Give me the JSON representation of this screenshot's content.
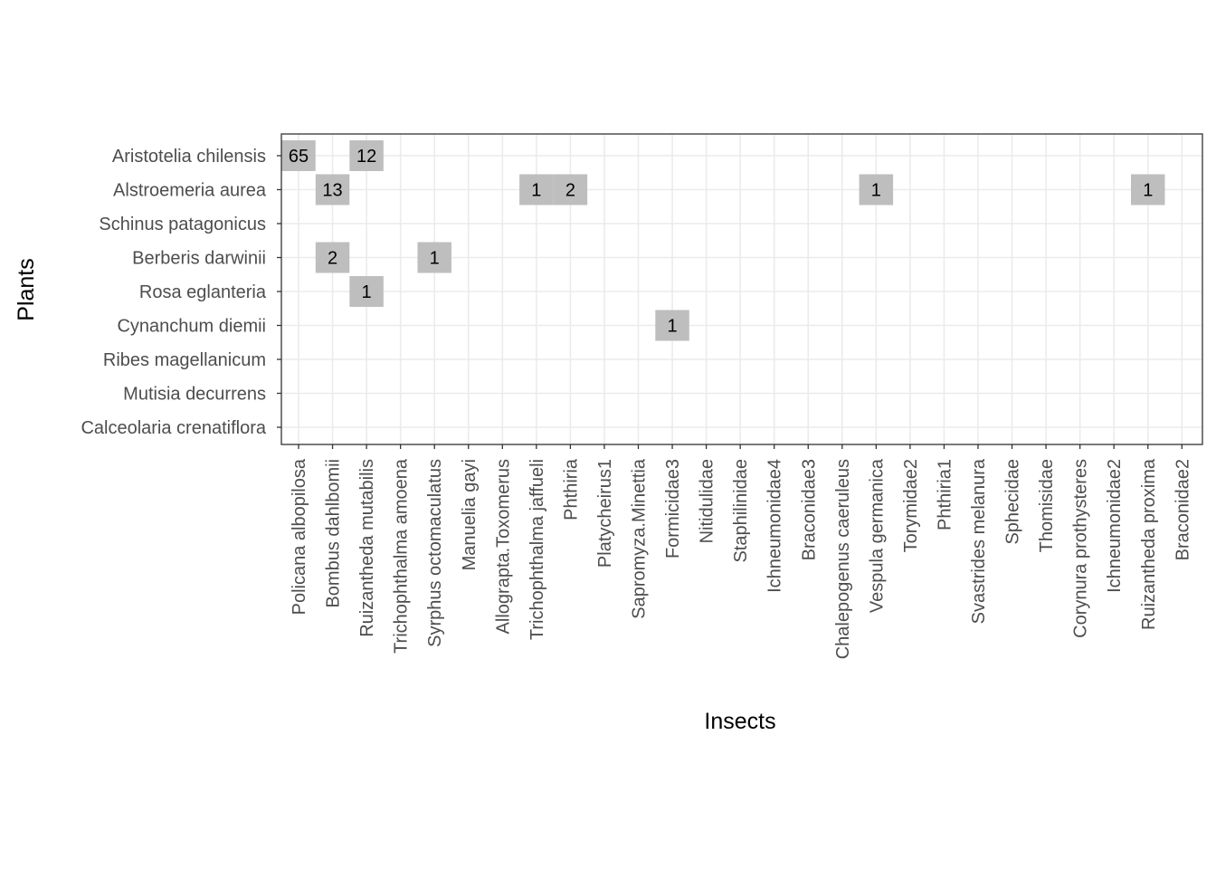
{
  "chart_data": {
    "type": "heatmap",
    "title": "",
    "xlabel": "Insects",
    "ylabel": "Plants",
    "grid": true,
    "legend": "none",
    "colors": {
      "background": "#ffffff",
      "panel_border": "#333333",
      "grid": "#ebebeb",
      "tile": "#bebebe",
      "axis_text": "#4d4d4d",
      "axis_title": "#000000"
    },
    "x_categories": [
      "Policana albopilosa",
      "Bombus dahlbomii",
      "Ruizantheda mutabilis",
      "Trichophthalma amoena",
      "Syrphus octomaculatus",
      "Manuelia gayi",
      "Allograpta.Toxomerus",
      "Trichophthalma jaffueli",
      "Phthiria",
      "Platycheirus1",
      "Sapromyza.Minettia",
      "Formicidae3",
      "Nitidulidae",
      "Staphilinidae",
      "Ichneumonidae4",
      "Braconidae3",
      "Chalepogenus caeruleus",
      "Vespula germanica",
      "Torymidae2",
      "Phthiria1",
      "Svastrides melanura",
      "Sphecidae",
      "Thomisidae",
      "Corynura prothysteres",
      "Ichneumonidae2",
      "Ruizantheda proxima",
      "Braconidae2"
    ],
    "y_categories": [
      "Aristotelia chilensis",
      "Alstroemeria aurea",
      "Schinus patagonicus",
      "Berberis darwinii",
      "Rosa eglanteria",
      "Cynanchum diemii",
      "Ribes magellanicum",
      "Mutisia decurrens",
      "Calceolaria crenatiflora"
    ],
    "cells": [
      {
        "plant": "Aristotelia chilensis",
        "insect": "Policana albopilosa",
        "value": 65
      },
      {
        "plant": "Aristotelia chilensis",
        "insect": "Ruizantheda mutabilis",
        "value": 12
      },
      {
        "plant": "Alstroemeria aurea",
        "insect": "Bombus dahlbomii",
        "value": 13
      },
      {
        "plant": "Alstroemeria aurea",
        "insect": "Trichophthalma jaffueli",
        "value": 1
      },
      {
        "plant": "Alstroemeria aurea",
        "insect": "Phthiria",
        "value": 2
      },
      {
        "plant": "Alstroemeria aurea",
        "insect": "Vespula germanica",
        "value": 1
      },
      {
        "plant": "Alstroemeria aurea",
        "insect": "Ruizantheda proxima",
        "value": 1
      },
      {
        "plant": "Berberis darwinii",
        "insect": "Bombus dahlbomii",
        "value": 2
      },
      {
        "plant": "Berberis darwinii",
        "insect": "Syrphus octomaculatus",
        "value": 1
      },
      {
        "plant": "Rosa eglanteria",
        "insect": "Ruizantheda mutabilis",
        "value": 1
      },
      {
        "plant": "Cynanchum diemii",
        "insect": "Formicidae3",
        "value": 1
      }
    ]
  }
}
